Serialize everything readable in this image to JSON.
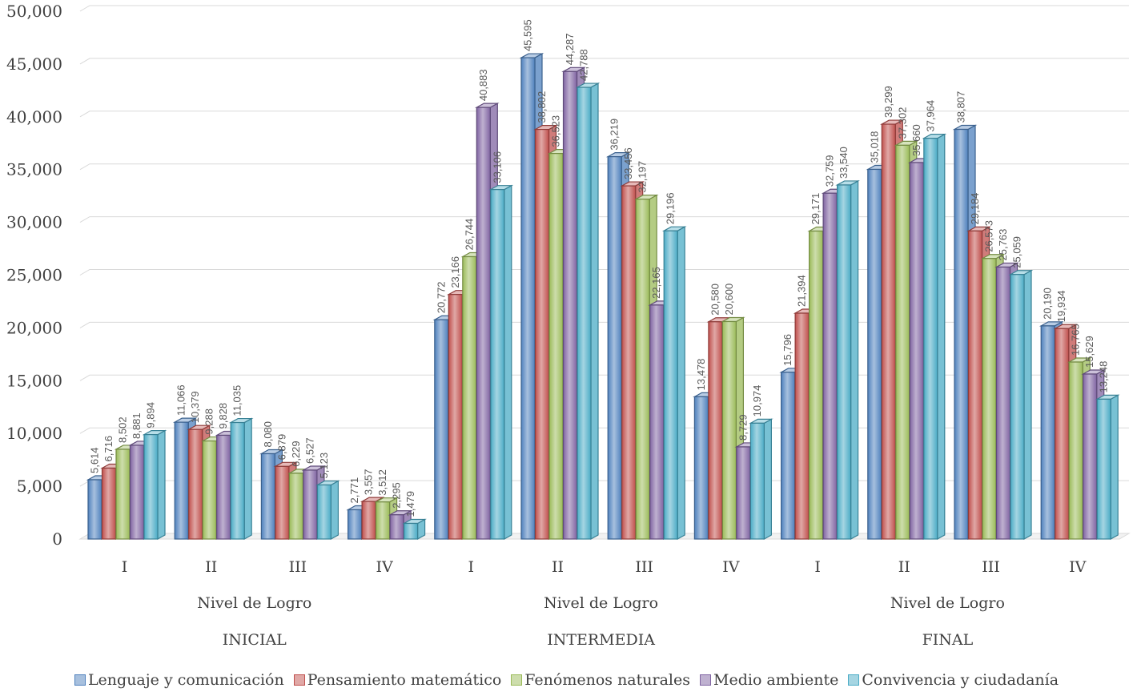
{
  "chart_data": {
    "type": "bar",
    "categories": [
      "I",
      "II",
      "III",
      "IV",
      "I",
      "II",
      "III",
      "IV",
      "I",
      "II",
      "III",
      "IV"
    ],
    "subgroup_label": [
      "Nivel de Logro",
      "Nivel de Logro",
      "Nivel de Logro"
    ],
    "groups": [
      "INICIAL",
      "INTERMEDIA",
      "FINAL"
    ],
    "series": [
      {
        "name": "Lenguaje y comunicación",
        "color": "#4f81bd",
        "light": "#a7c0de",
        "values": [
          5614,
          11066,
          8080,
          2771,
          20772,
          45595,
          36219,
          13478,
          15796,
          35018,
          38807,
          20190
        ]
      },
      {
        "name": "Pensamiento matemático",
        "color": "#c0504d",
        "light": "#e0a8a6",
        "values": [
          6716,
          10379,
          6879,
          3557,
          23166,
          38802,
          33456,
          20580,
          21394,
          39299,
          29184,
          19934
        ]
      },
      {
        "name": "Fenómenos naturales",
        "color": "#9bbb59",
        "light": "#cdddac",
        "values": [
          8502,
          9288,
          6229,
          3512,
          26744,
          36523,
          32197,
          20600,
          29171,
          37302,
          26573,
          16765
        ]
      },
      {
        "name": "Medio ambiente",
        "color": "#8064a2",
        "light": "#bfb1d0",
        "values": [
          8881,
          9828,
          6527,
          2295,
          40883,
          44287,
          22165,
          8729,
          32759,
          35660,
          25763,
          15629
        ]
      },
      {
        "name": "Convivencia y ciudadanía",
        "color": "#4bacc6",
        "light": "#a5d5e2",
        "values": [
          9894,
          11035,
          5123,
          1479,
          33106,
          42788,
          29196,
          10974,
          33540,
          37964,
          25059,
          13248
        ]
      }
    ],
    "labels": [
      [
        "5,614",
        "11,066",
        "8,080",
        "2,771",
        "20,772",
        "45,595",
        "36,219",
        "13,478",
        "15,796",
        "35,018",
        "38,807",
        "20,190"
      ],
      [
        "6,716",
        "10,379",
        "6,879",
        "3,557",
        "23,166",
        "38,802",
        "33,456",
        "20,580",
        "21,394",
        "39,299",
        "29,184",
        "19,934"
      ],
      [
        "8,502",
        "9,288",
        "6,229",
        "3,512",
        "26,744",
        "36,523",
        "32,197",
        "20,600",
        "29,171",
        "37,302",
        "26,573",
        "16,765"
      ],
      [
        "8,881",
        "9,828",
        "6,527",
        "2,295",
        "40,883",
        "44,287",
        "22,165",
        "8,729",
        "32,759",
        "35,660",
        "25,763",
        "15,629"
      ],
      [
        "9,894",
        "11,035",
        "5,123",
        "1,479",
        "33,106",
        "42,788",
        "29,196",
        "10,974",
        "33,540",
        "37,964",
        "25,059",
        "13,248"
      ]
    ],
    "yticks": [
      "0",
      "5,000",
      "10,000",
      "15,000",
      "20,000",
      "25,000",
      "30,000",
      "35,000",
      "40,000",
      "45,000",
      "50,000"
    ],
    "ylim": [
      0,
      50000
    ],
    "grid": true,
    "legend_position": "bottom"
  }
}
